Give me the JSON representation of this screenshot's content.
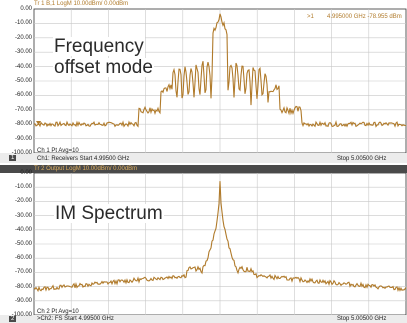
{
  "colors": {
    "trace": "#b07a2a",
    "grid": "#c8c8c8",
    "frame": "#333333",
    "header_bar": "#4a4a4a"
  },
  "panels": [
    {
      "header": "Tr 1 B,1 LogM 10.00dBm/ 0.00dBm",
      "marker_label": ">1",
      "marker_value": "4.995000 GHz  -78.955 dBm",
      "overlay_text_line1": "Frequency",
      "overlay_text_line2": "offset mode",
      "avg": "Ch 1 Pt Avg=10",
      "channel_number": "1",
      "start": "Ch1: Receivers Start  4.99500 GHz",
      "stop": "Stop  5.00500 GHz",
      "y_ticks": [
        "0.00",
        "-10.00",
        "-20.00",
        "-30.00",
        "-40.00",
        "-50.00",
        "-60.00",
        "-70.00",
        "-80.00",
        "-90.00",
        "-100.00"
      ]
    },
    {
      "header": "Tr 2 Output LogM 10.00dBm/ 0.00dBm",
      "overlay_text_line1": "IM Spectrum",
      "avg": "Ch 2 Pt Avg=10",
      "channel_number": "2",
      "start": ">Ch2: FS Start  4.99500 GHz",
      "stop": "Stop  5.00500 GHz",
      "y_ticks": [
        "0.00",
        "-10.00",
        "-20.00",
        "-30.00",
        "-40.00",
        "-50.00",
        "-60.00",
        "-70.00",
        "-80.00",
        "-90.00",
        "-100.00"
      ]
    }
  ]
}
